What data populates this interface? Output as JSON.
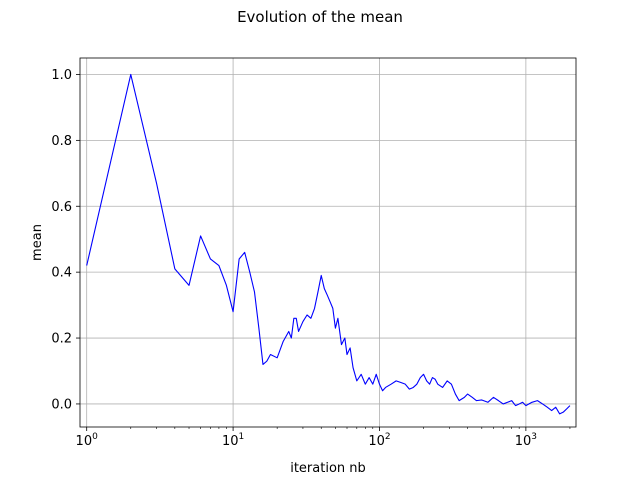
{
  "chart_data": {
    "type": "line",
    "title": "Evolution of the mean",
    "xlabel": "iteration nb",
    "ylabel": "mean",
    "x_scale": "log",
    "xlim": [
      0.9,
      2200
    ],
    "ylim": [
      -0.07,
      1.05
    ],
    "grid": true,
    "x_ticks": [
      {
        "value": 1,
        "base": "10",
        "exp": "0"
      },
      {
        "value": 10,
        "base": "10",
        "exp": "1"
      },
      {
        "value": 100,
        "base": "10",
        "exp": "2"
      },
      {
        "value": 1000,
        "base": "10",
        "exp": "3"
      }
    ],
    "y_ticks": [
      {
        "value": 0.0,
        "label": "0.0"
      },
      {
        "value": 0.2,
        "label": "0.2"
      },
      {
        "value": 0.4,
        "label": "0.4"
      },
      {
        "value": 0.6,
        "label": "0.6"
      },
      {
        "value": 0.8,
        "label": "0.8"
      },
      {
        "value": 1.0,
        "label": "1.0"
      }
    ],
    "series": [
      {
        "color": "#0000ff",
        "x": [
          1,
          2,
          3,
          4,
          5,
          6,
          7,
          8,
          9,
          10,
          11,
          12,
          13,
          14,
          15,
          16,
          17,
          18,
          20,
          22,
          24,
          25,
          26,
          27,
          28,
          30,
          32,
          34,
          36,
          38,
          40,
          42,
          44,
          46,
          48,
          50,
          52,
          55,
          58,
          60,
          63,
          66,
          70,
          75,
          80,
          85,
          90,
          95,
          100,
          105,
          110,
          120,
          130,
          140,
          150,
          160,
          170,
          180,
          190,
          200,
          210,
          220,
          230,
          240,
          250,
          270,
          290,
          310,
          330,
          350,
          380,
          400,
          430,
          460,
          500,
          550,
          600,
          650,
          700,
          750,
          800,
          850,
          900,
          950,
          1000,
          1100,
          1200,
          1300,
          1400,
          1500,
          1600,
          1700,
          1800,
          1900,
          2000
        ],
        "y": [
          0.42,
          1.0,
          0.67,
          0.41,
          0.36,
          0.51,
          0.44,
          0.42,
          0.36,
          0.28,
          0.44,
          0.46,
          0.4,
          0.34,
          0.23,
          0.12,
          0.13,
          0.15,
          0.14,
          0.19,
          0.22,
          0.2,
          0.26,
          0.26,
          0.22,
          0.25,
          0.27,
          0.26,
          0.29,
          0.34,
          0.39,
          0.35,
          0.33,
          0.31,
          0.29,
          0.23,
          0.26,
          0.18,
          0.2,
          0.15,
          0.17,
          0.11,
          0.07,
          0.09,
          0.06,
          0.08,
          0.06,
          0.09,
          0.06,
          0.04,
          0.05,
          0.06,
          0.07,
          0.065,
          0.06,
          0.045,
          0.05,
          0.06,
          0.08,
          0.09,
          0.07,
          0.06,
          0.08,
          0.075,
          0.06,
          0.05,
          0.07,
          0.06,
          0.03,
          0.01,
          0.02,
          0.03,
          0.02,
          0.01,
          0.012,
          0.005,
          0.02,
          0.01,
          0.0,
          0.005,
          0.01,
          -0.005,
          0.0,
          0.005,
          -0.005,
          0.005,
          0.01,
          0.0,
          -0.01,
          -0.02,
          -0.01,
          -0.03,
          -0.025,
          -0.015,
          -0.005
        ]
      }
    ]
  }
}
